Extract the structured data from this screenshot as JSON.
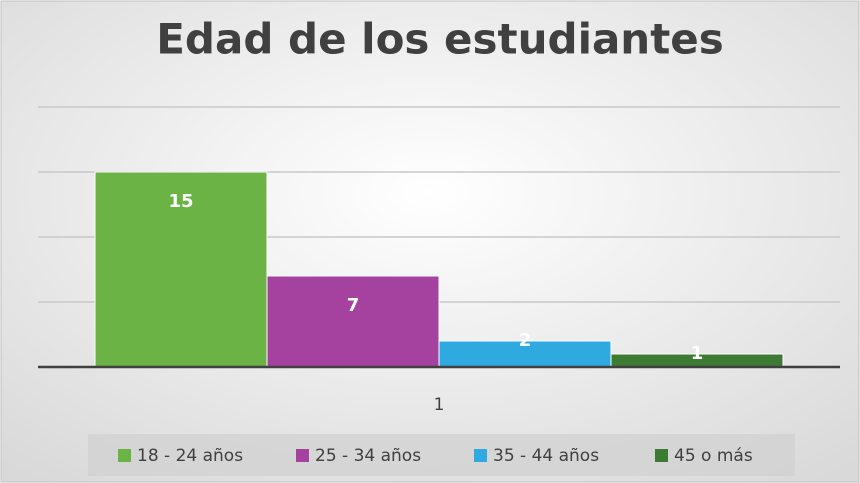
{
  "chart_data": {
    "type": "bar",
    "title": "Edad de los estudiantes",
    "categories": [
      "1"
    ],
    "series": [
      {
        "name": "18 - 24 años",
        "color": "#6ab344",
        "values": [
          15
        ]
      },
      {
        "name": "25 - 34 años",
        "color": "#a5429f",
        "values": [
          7
        ]
      },
      {
        "name": "35 - 44 años",
        "color": "#2eaae1",
        "values": [
          2
        ]
      },
      {
        "name": "45 o más",
        "color": "#3d7a33",
        "values": [
          1
        ]
      }
    ],
    "ylim": [
      0,
      20
    ],
    "yticks": [
      0,
      5,
      10,
      15,
      20
    ],
    "grid": true,
    "legend": "bottom"
  }
}
